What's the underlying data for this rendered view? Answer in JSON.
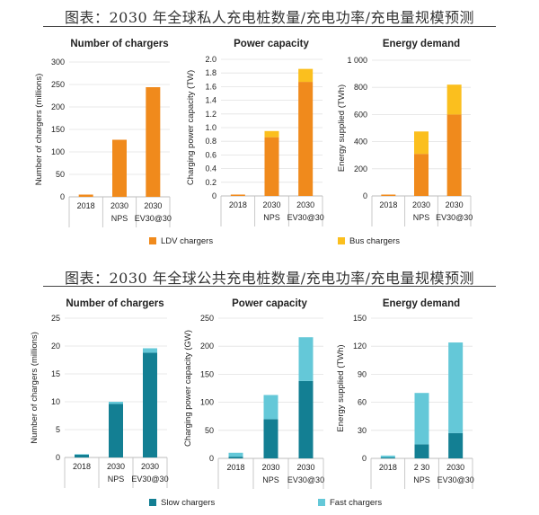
{
  "top_caption": "图表：2030 年全球私人充电桩数量/充电功率/充电量规模预测",
  "bottom_caption": "图表：2030 年全球公共充电桩数量/充电功率/充电量规模预测",
  "top_legend": [
    "LDV chargers",
    "Bus chargers"
  ],
  "bottom_legend": [
    "Slow chargers",
    "Fast chargers"
  ],
  "colors": {
    "ldv": "#f08a1c",
    "bus": "#fbbf1e",
    "slow": "#137f93",
    "fast": "#64c8d8",
    "grid": "#e2e2e2",
    "axis": "#bdbdbd"
  },
  "chart_data": [
    {
      "type": "bar",
      "stacked": true,
      "title": "Number of chargers",
      "ylabel": "Number of chargers (millions)",
      "categories": [
        [
          "2018"
        ],
        [
          "2030",
          "NPS"
        ],
        [
          "2030",
          "EV30@30"
        ]
      ],
      "ylim": [
        0,
        300
      ],
      "yticks": [
        "0",
        "50",
        "100",
        "150",
        "200",
        "250",
        "300"
      ],
      "series": [
        {
          "name": "LDV chargers",
          "color": "ldv",
          "values": [
            5,
            127,
            244
          ]
        },
        {
          "name": "Bus chargers",
          "color": "bus",
          "values": [
            0,
            0,
            0
          ]
        }
      ]
    },
    {
      "type": "bar",
      "stacked": true,
      "title": "Power capacity",
      "ylabel": "Charging power capacity (TW)",
      "categories": [
        [
          "2018"
        ],
        [
          "2030",
          "NPS"
        ],
        [
          "2030",
          "EV30@30"
        ]
      ],
      "ylim": [
        0,
        2.0
      ],
      "yticks": [
        "0",
        "0.2",
        "0.4",
        "0.6",
        "0.8",
        "1.0",
        "1.2",
        "1.4",
        "1.6",
        "1.8",
        "2.0"
      ],
      "series": [
        {
          "name": "LDV chargers",
          "color": "ldv",
          "values": [
            0.02,
            0.86,
            1.67
          ]
        },
        {
          "name": "Bus chargers",
          "color": "bus",
          "values": [
            0,
            0.09,
            0.19
          ]
        }
      ]
    },
    {
      "type": "bar",
      "stacked": true,
      "title": "Energy demand",
      "ylabel": "Energy supplied (TWh)",
      "categories": [
        [
          "2018"
        ],
        [
          "2030",
          "NPS"
        ],
        [
          "2030",
          "EV30@30"
        ]
      ],
      "ylim": [
        0,
        1000
      ],
      "yticks": [
        "0",
        "200",
        "400",
        "600",
        "800",
        "1 000"
      ],
      "series": [
        {
          "name": "LDV chargers",
          "color": "ldv",
          "values": [
            10,
            310,
            600
          ]
        },
        {
          "name": "Bus chargers",
          "color": "bus",
          "values": [
            0,
            165,
            220
          ]
        }
      ]
    },
    {
      "type": "bar",
      "stacked": true,
      "title": "Number of chargers",
      "ylabel": "Number of chargers (millions)",
      "categories": [
        [
          "2018"
        ],
        [
          "2030",
          "NPS"
        ],
        [
          "2030",
          "EV30@30"
        ]
      ],
      "ylim": [
        0,
        25
      ],
      "yticks": [
        "0",
        "5",
        "10",
        "15",
        "20",
        "25"
      ],
      "series": [
        {
          "name": "Slow chargers",
          "color": "slow",
          "values": [
            0.5,
            9.6,
            18.8
          ]
        },
        {
          "name": "Fast chargers",
          "color": "fast",
          "values": [
            0.1,
            0.4,
            0.8
          ]
        }
      ]
    },
    {
      "type": "bar",
      "stacked": true,
      "title": "Power capacity",
      "ylabel": "Charging power capacity (GW)",
      "categories": [
        [
          "2018"
        ],
        [
          "2030",
          "NPS"
        ],
        [
          "2030",
          "EV30@30"
        ]
      ],
      "ylim": [
        0,
        250
      ],
      "yticks": [
        "0",
        "50",
        "100",
        "150",
        "200",
        "250"
      ],
      "series": [
        {
          "name": "Slow chargers",
          "color": "slow",
          "values": [
            3,
            70,
            138
          ]
        },
        {
          "name": "Fast chargers",
          "color": "fast",
          "values": [
            7,
            43,
            78
          ]
        }
      ]
    },
    {
      "type": "bar",
      "stacked": true,
      "title": "Energy demand",
      "ylabel": "Energy supplied (TWh)",
      "categories": [
        [
          "2018"
        ],
        [
          "2 30",
          "NPS"
        ],
        [
          "2030",
          "EV30@30"
        ]
      ],
      "ylim": [
        0,
        150
      ],
      "yticks": [
        "0",
        "30",
        "60",
        "90",
        "120",
        "150"
      ],
      "series": [
        {
          "name": "Slow chargers",
          "color": "slow",
          "values": [
            1,
            15,
            27
          ]
        },
        {
          "name": "Fast chargers",
          "color": "fast",
          "values": [
            2,
            55,
            97
          ]
        }
      ]
    }
  ]
}
